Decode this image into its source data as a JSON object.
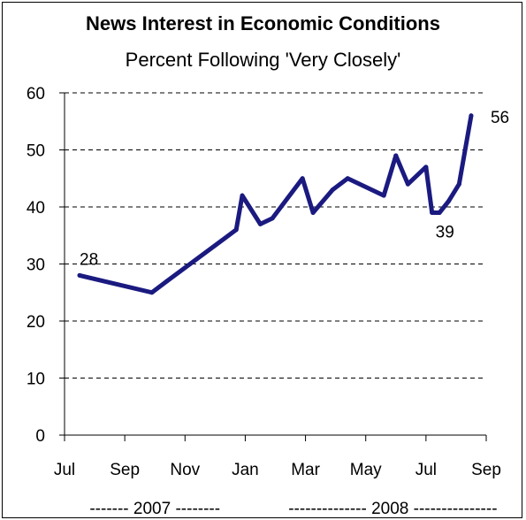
{
  "chart_data": {
    "type": "line",
    "title": "News Interest in Economic Conditions",
    "subtitle": "Percent Following 'Very Closely'",
    "xlabel": "",
    "ylabel": "",
    "ylim": [
      0,
      60
    ],
    "yticks": [
      0,
      10,
      20,
      30,
      40,
      50,
      60
    ],
    "xlim": [
      0,
      14
    ],
    "xticks": [
      {
        "pos": 0,
        "label": "Jul"
      },
      {
        "pos": 2,
        "label": "Sep"
      },
      {
        "pos": 4,
        "label": "Nov"
      },
      {
        "pos": 6,
        "label": "Jan"
      },
      {
        "pos": 8,
        "label": "Mar"
      },
      {
        "pos": 10,
        "label": "May"
      },
      {
        "pos": 12,
        "label": "Jul"
      },
      {
        "pos": 14,
        "label": "Sep"
      }
    ],
    "year_labels": [
      {
        "label": "------- 2007 --------",
        "pos": 3.0
      },
      {
        "label": "-------------- 2008 ---------------",
        "pos": 10.9
      }
    ],
    "grid": "horizontal dashed",
    "color": "#1a1a80",
    "series": [
      {
        "x": [
          0.5,
          2.9,
          3.4,
          5.7,
          5.9,
          6.5,
          6.9,
          7.9,
          8.25,
          8.9,
          9.4,
          10.6,
          11.0,
          11.4,
          12.0,
          12.2,
          12.45,
          12.75,
          13.1,
          13.5
        ],
        "values": [
          28,
          25,
          27,
          36,
          42,
          37,
          38,
          45,
          39,
          43,
          45,
          42,
          49,
          44,
          47,
          39,
          39,
          41,
          44,
          56
        ]
      }
    ],
    "data_labels": [
      {
        "text": "28",
        "point": 0
      },
      {
        "text": "39",
        "point": 15
      },
      {
        "text": "56",
        "point": 19
      }
    ]
  }
}
